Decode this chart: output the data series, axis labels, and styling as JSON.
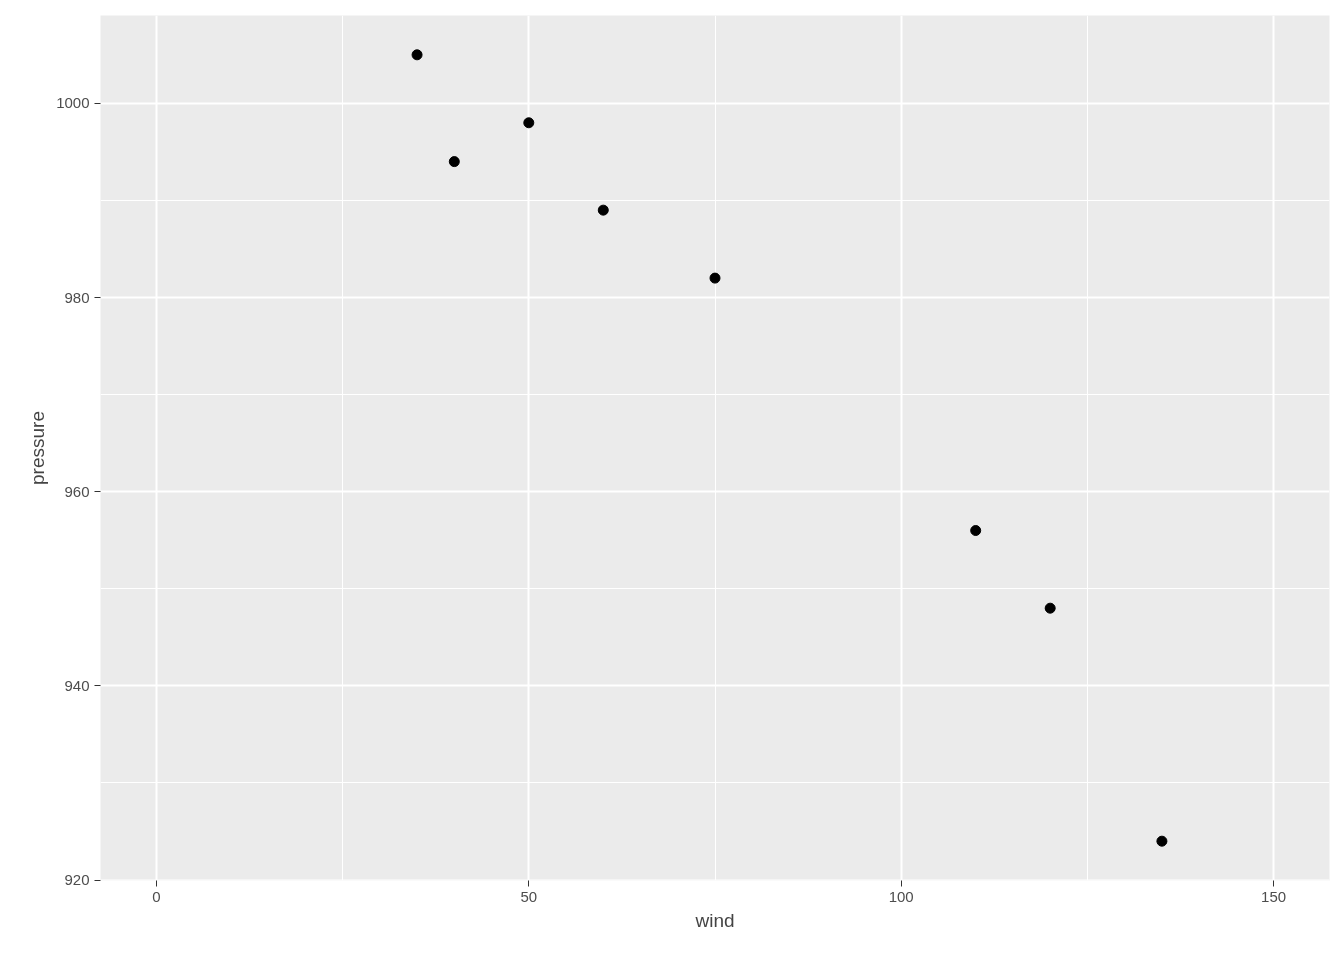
{
  "chart_data": {
    "type": "scatter",
    "xlabel": "wind",
    "ylabel": "pressure",
    "x": [
      35,
      40,
      50,
      60,
      75,
      110,
      120,
      135
    ],
    "series": [
      {
        "color": "#000000",
        "values": [
          1005,
          994,
          998,
          989,
          982,
          956,
          948,
          924
        ]
      }
    ],
    "xlim": [
      -7.5,
      157.5
    ],
    "ylim": [
      919.95,
      1009.05
    ],
    "xticks": [
      0,
      50,
      100,
      150
    ],
    "yticks": [
      920,
      940,
      960,
      980,
      1000
    ],
    "grid": true,
    "marker": "circle"
  }
}
